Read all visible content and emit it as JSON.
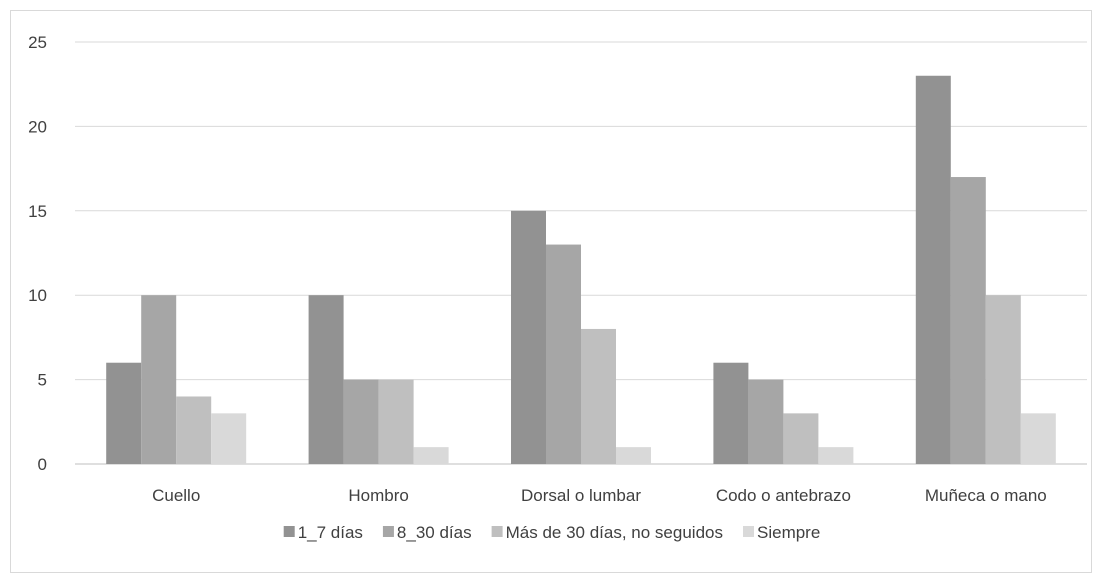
{
  "chart_data": {
    "type": "bar",
    "title": "",
    "xlabel": "",
    "ylabel": "",
    "ylim": [
      0,
      25
    ],
    "yticks": [
      0,
      5,
      10,
      15,
      20,
      25
    ],
    "grid": true,
    "legend_position": "bottom",
    "categories": [
      "Cuello",
      "Hombro",
      "Dorsal o lumbar",
      "Codo o antebrazo",
      "Muñeca o mano"
    ],
    "series": [
      {
        "name": "1_7 días",
        "color": "#929292",
        "values": [
          6,
          10,
          15,
          6,
          23
        ]
      },
      {
        "name": "8_30 días",
        "color": "#a6a6a6",
        "values": [
          10,
          5,
          13,
          5,
          17
        ]
      },
      {
        "name": "Más de 30 días, no seguidos",
        "color": "#bfbfbf",
        "values": [
          4,
          5,
          8,
          3,
          10
        ]
      },
      {
        "name": "Siempre",
        "color": "#d9d9d9",
        "values": [
          3,
          1,
          1,
          1,
          3
        ]
      }
    ]
  }
}
